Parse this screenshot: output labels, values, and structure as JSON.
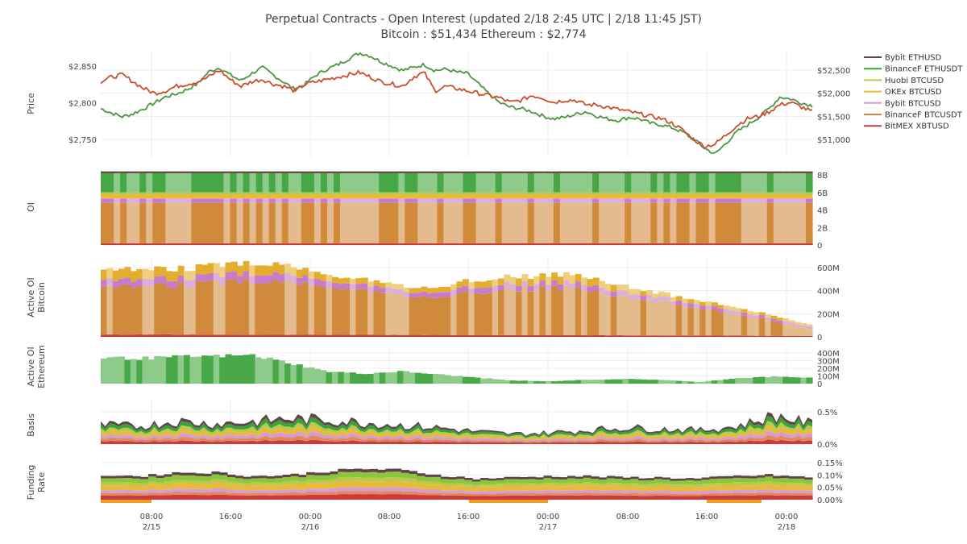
{
  "chart_data": {
    "type": "line",
    "title": "Perpetual Contracts - Open Interest   (updated   2/18 2:45 UTC   |   2/18 11:45 JST)",
    "subtitle": "Bitcoin : $51,434    Ethereum : $2,774",
    "x_ticks": [
      {
        "time": "08:00",
        "date": "2/15"
      },
      {
        "time": "16:00",
        "date": ""
      },
      {
        "time": "00:00",
        "date": "2/16"
      },
      {
        "time": "08:00",
        "date": ""
      },
      {
        "time": "16:00",
        "date": ""
      },
      {
        "time": "00:00",
        "date": "2/17"
      },
      {
        "time": "08:00",
        "date": ""
      },
      {
        "time": "16:00",
        "date": ""
      },
      {
        "time": "00:00",
        "date": "2/18"
      }
    ],
    "legend": [
      {
        "name": "Bybit ETHUSD",
        "color": "#5d4548"
      },
      {
        "name": "BinanceF ETHUSDT",
        "color": "#3aa23a"
      },
      {
        "name": "Huobi BTCUSD",
        "color": "#b9c94a"
      },
      {
        "name": "OKEx BTCUSD",
        "color": "#e9b93c"
      },
      {
        "name": "Bybit BTCUSD",
        "color": "#d59bd8"
      },
      {
        "name": "BinanceF BTCUSDT",
        "color": "#d08a3a"
      },
      {
        "name": "BitMEX XBTUSD",
        "color": "#cc3a3a"
      }
    ],
    "panels": [
      {
        "id": "price",
        "ylabel": "Price",
        "left_ticks": [
          "$2,850",
          "$2,800",
          "$2,750"
        ],
        "left_color": "#2a5aa8",
        "right_ticks": [
          "$52,500",
          "$52,000",
          "$51,500",
          "$51,000"
        ],
        "right_color": "#b03030",
        "series": [
          {
            "name": "Ethereum price",
            "unit": "USD",
            "color": "#3a8a3a",
            "values": [
              2792,
              2786,
              2781,
              2785,
              2792,
              2800,
              2808,
              2812,
              2818,
              2826,
              2842,
              2848,
              2838,
              2830,
              2840,
              2848,
              2838,
              2828,
              2818,
              2826,
              2838,
              2846,
              2852,
              2860,
              2868,
              2864,
              2856,
              2850,
              2844,
              2848,
              2852,
              2844,
              2846,
              2842,
              2840,
              2826,
              2812,
              2800,
              2794,
              2792,
              2788,
              2782,
              2778,
              2780,
              2784,
              2788,
              2782,
              2778,
              2776,
              2780,
              2778,
              2772,
              2770,
              2766,
              2760,
              2750,
              2738,
              2730,
              2745,
              2760,
              2770,
              2780,
              2792,
              2808,
              2805,
              2800,
              2796
            ]
          },
          {
            "name": "Bitcoin price",
            "unit": "USD",
            "color": "#c43a2a",
            "values": [
              52250,
              52350,
              52400,
              52250,
              52100,
              52000,
              52050,
              52150,
              52200,
              52250,
              52350,
              52500,
              52300,
              52150,
              52250,
              52300,
              52200,
              52150,
              52050,
              52200,
              52250,
              52300,
              52350,
              52400,
              52450,
              52350,
              52250,
              52200,
              52150,
              52350,
              52450,
              52050,
              52150,
              52100,
              52050,
              52000,
              51950,
              51900,
              51800,
              51850,
              51950,
              51900,
              51800,
              51850,
              51850,
              51750,
              51750,
              51700,
              51650,
              51600,
              51550,
              51500,
              51450,
              51350,
              51200,
              51000,
              50850,
              50900,
              51100,
              51300,
              51450,
              51500,
              51600,
              51750,
              51800,
              51700,
              51600
            ]
          }
        ]
      },
      {
        "id": "oi",
        "ylabel": "OI",
        "right_ticks": [
          "8B",
          "6B",
          "4B",
          "2B",
          "0"
        ],
        "unit": "USD (billions)",
        "stack": [
          {
            "name": "BitMEX XBTUSD",
            "value": 0.2
          },
          {
            "name": "BinanceF BTCUSDT",
            "value": 4.6
          },
          {
            "name": "Bybit BTCUSD",
            "value": 0.5
          },
          {
            "name": "OKEx BTCUSD",
            "value": 0.5
          },
          {
            "name": "Huobi BTCUSD",
            "value": 0.2
          },
          {
            "name": "BinanceF ETHUSDT",
            "value": 2.2
          },
          {
            "name": "Bybit ETHUSD",
            "value": 0.2
          }
        ]
      },
      {
        "id": "active_btc",
        "ylabel": "Active OI",
        "ylabel2": "Bitcoin",
        "right_ticks": [
          "600M",
          "400M",
          "200M",
          "0"
        ],
        "unit": "USD (millions)",
        "layers": [
          {
            "name": "BitMEX XBTUSD",
            "values": [
              20,
              20,
              18,
              18,
              16,
              15,
              14,
              12,
              10,
              8
            ]
          },
          {
            "name": "BinanceF BTCUSDT",
            "values": [
              420,
              430,
              470,
              420,
              320,
              390,
              410,
              300,
              200,
              60
            ]
          },
          {
            "name": "Bybit BTCUSD",
            "values": [
              60,
              60,
              70,
              50,
              40,
              50,
              50,
              40,
              30,
              20
            ]
          },
          {
            "name": "OKEx BTCUSD",
            "values": [
              90,
              80,
              90,
              50,
              40,
              60,
              70,
              40,
              30,
              20
            ]
          }
        ]
      },
      {
        "id": "active_eth",
        "ylabel": "Active OI",
        "ylabel2": "Ethereum",
        "right_ticks": [
          "400M",
          "300M",
          "200M",
          "100M",
          "0"
        ],
        "unit": "USD (millions)",
        "values": [
          340,
          330,
          350,
          360,
          370,
          270,
          160,
          130,
          160,
          120,
          80,
          40,
          30,
          50,
          60,
          50,
          20,
          70,
          90,
          80
        ]
      },
      {
        "id": "basis",
        "ylabel": "Basis",
        "right_ticks": [
          "0.5%",
          "0.0%"
        ],
        "unit": "percent",
        "values": [
          0.3,
          0.28,
          0.36,
          0.32,
          0.35,
          0.4,
          0.38,
          0.34,
          0.3,
          0.26,
          0.2,
          0.16,
          0.18,
          0.22,
          0.26,
          0.24,
          0.22,
          0.28,
          0.45,
          0.32
        ]
      },
      {
        "id": "funding",
        "ylabel": "Funding",
        "ylabel2": "Rate",
        "right_ticks": [
          "0.15%",
          "0.10%",
          "0.05%",
          "0.00%"
        ],
        "unit": "percent",
        "values": [
          0.1,
          0.095,
          0.11,
          0.11,
          0.095,
          0.1,
          0.115,
          0.125,
          0.12,
          0.1,
          0.085,
          0.09,
          0.095,
          0.095,
          0.09,
          0.09,
          0.085,
          0.095,
          0.1,
          0.09
        ]
      }
    ]
  }
}
